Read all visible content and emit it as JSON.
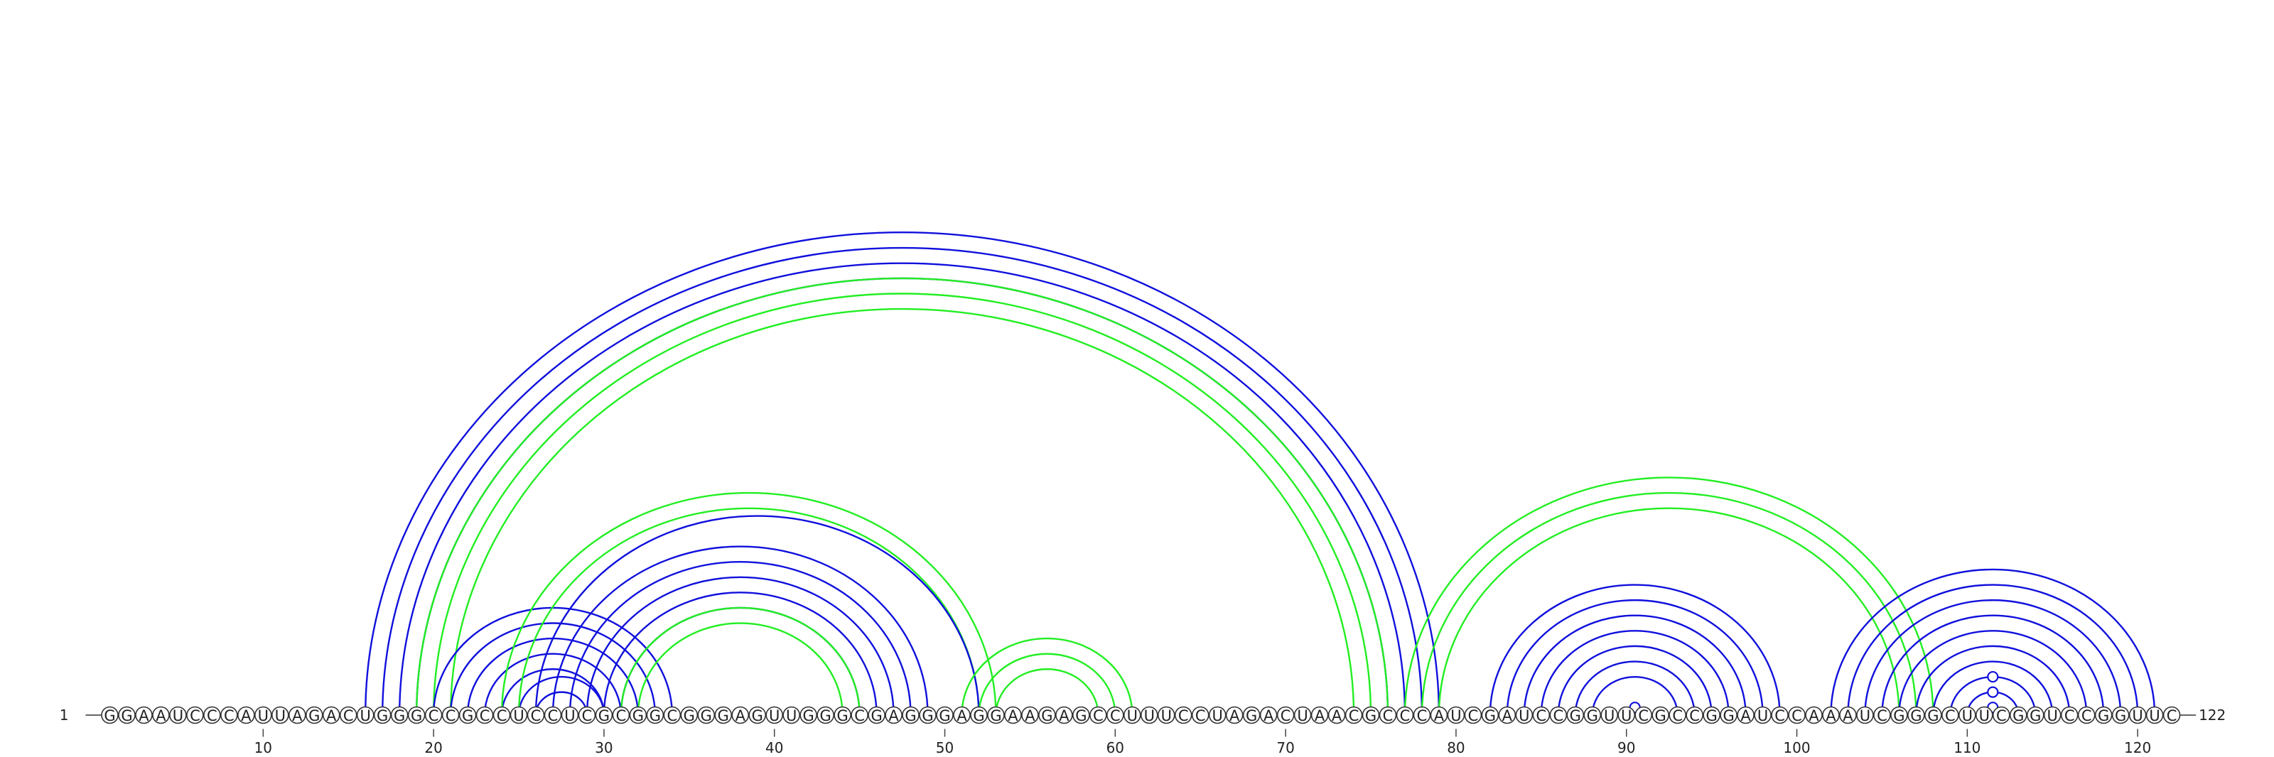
{
  "sequence": "GGAAUCCCAUUAGACUGGGCCGCCUCCUCGCGGCGGGAGUUGGGCGAGGGAGGAAGAGCCUUUCCUAGACUAACGCCCAUCGAUCCGGUUCGCCGGAUCCAAAUCGGGCUUCGGUCCGGUUC",
  "start_label": "1",
  "end_label": "122",
  "ticks": [
    10,
    20,
    30,
    40,
    50,
    60,
    70,
    80,
    90,
    100,
    110,
    120
  ],
  "colors": {
    "blue": "#1010dd",
    "green": "#22ee22"
  },
  "helices": [
    {
      "color": "blue",
      "i": 16,
      "j": 79,
      "len": 4
    },
    {
      "color": "green",
      "i": 19,
      "j": 76,
      "len": 3
    },
    {
      "color": "blue",
      "i": 20,
      "j": 34,
      "len": 3
    },
    {
      "color": "blue",
      "i": 23,
      "j": 31,
      "len": 2
    },
    {
      "color": "blue",
      "i": 25,
      "j": 30,
      "len": 2
    },
    {
      "color": "green",
      "i": 24,
      "j": 53,
      "len": 2
    },
    {
      "color": "blue",
      "i": 26,
      "j": 52,
      "len": 1
    },
    {
      "color": "blue",
      "i": 27,
      "j": 49,
      "len": 3
    },
    {
      "color": "blue",
      "i": 30,
      "j": 46,
      "len": 2
    },
    {
      "color": "green",
      "i": 31,
      "j": 45,
      "len": 2
    },
    {
      "color": "green",
      "i": 51,
      "j": 61,
      "len": 3
    },
    {
      "color": "green",
      "i": 77,
      "j": 108,
      "len": 3
    },
    {
      "color": "blue",
      "i": 82,
      "j": 99,
      "len": 7
    },
    {
      "color": "blue",
      "i": 102,
      "j": 121,
      "len": 5
    },
    {
      "color": "blue",
      "i": 107,
      "j": 116,
      "len": 5
    }
  ],
  "markers": [
    {
      "color": "blue",
      "i": 90,
      "j": 91
    },
    {
      "color": "blue",
      "i": 111,
      "j": 112
    },
    {
      "color": "blue",
      "i": 110,
      "j": 113
    },
    {
      "color": "blue",
      "i": 109,
      "j": 114
    }
  ]
}
